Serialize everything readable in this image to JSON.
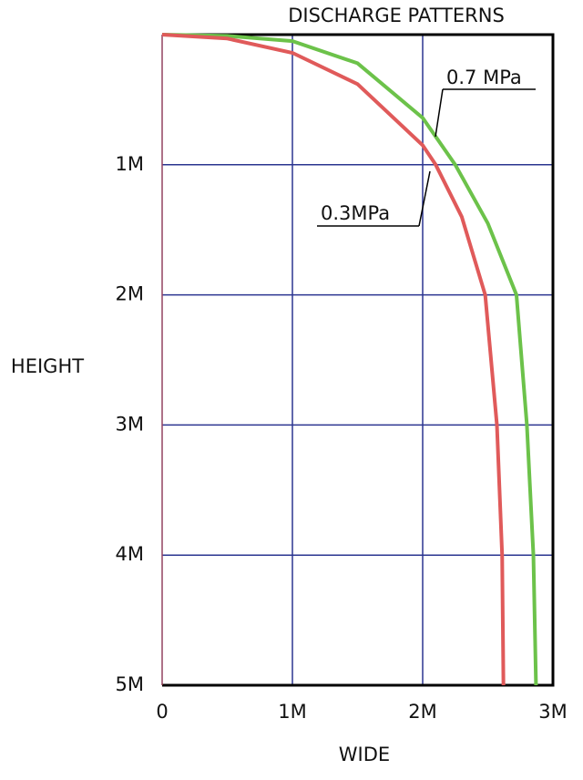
{
  "chart_data": {
    "type": "line",
    "title": "DISCHARGE PATTERNS",
    "x_label": "WIDE",
    "y_label": "HEIGHT",
    "xlim": [
      0,
      3
    ],
    "ylim": [
      0,
      5
    ],
    "y_inverted": true,
    "grid": true,
    "xticks": [
      0,
      {
        "value": 1,
        "label": "1M"
      },
      {
        "value": 2,
        "label": "2M"
      },
      {
        "value": 3,
        "label": "3M"
      }
    ],
    "yticks": [
      {
        "value": 1,
        "label": "1M"
      },
      {
        "value": 2,
        "label": "2M"
      },
      {
        "value": 3,
        "label": "3M"
      },
      {
        "value": 4,
        "label": "4M"
      },
      {
        "value": 5,
        "label": "5M"
      }
    ],
    "series": [
      {
        "name": "0.7 MPa",
        "color": "#6cc24a",
        "x": [
          0,
          0.5,
          1,
          1.5,
          2,
          2.25,
          2.5,
          2.72,
          2.8,
          2.85,
          2.87
        ],
        "values": [
          0,
          0.01,
          0.05,
          0.22,
          0.64,
          1.0,
          1.45,
          2.0,
          3.0,
          4.0,
          5.0
        ]
      },
      {
        "name": "0.3MPa",
        "color": "#e05a5a",
        "x": [
          0,
          0.5,
          1,
          1.5,
          2,
          2.1,
          2.3,
          2.48,
          2.57,
          2.61,
          2.62
        ],
        "values": [
          0,
          0.03,
          0.14,
          0.38,
          0.85,
          1.0,
          1.4,
          2.0,
          3.0,
          4.0,
          5.0
        ]
      }
    ]
  }
}
